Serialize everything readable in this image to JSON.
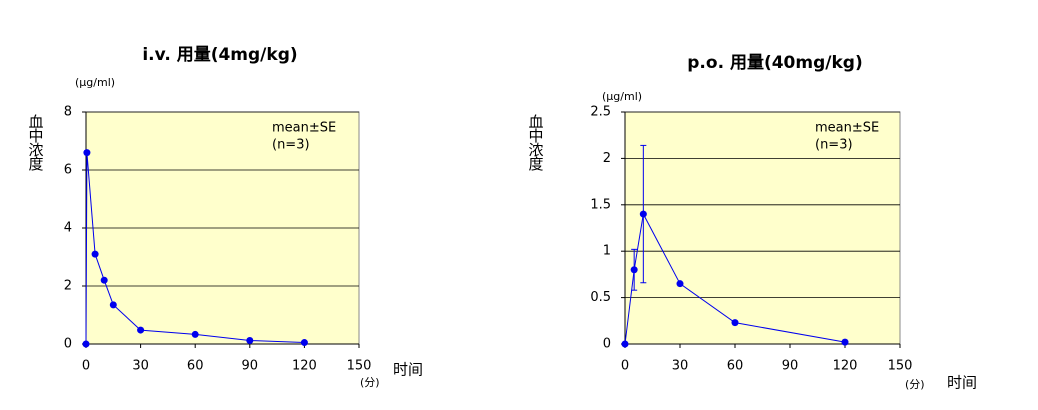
{
  "chart_data": [
    {
      "type": "line",
      "title": "i.v. 用量(4mg/kg)",
      "y_unit": "(μg/ml)",
      "y_label": "血中浓度",
      "x_label": "时间",
      "x_unit": "(分)",
      "annotations": [
        "mean±SE",
        "(n=3)"
      ],
      "x": [
        0,
        0.5,
        5,
        10,
        15,
        30,
        60,
        90,
        120
      ],
      "series": [
        {
          "color": "#0000ee",
          "values": [
            0,
            6.6,
            3.1,
            2.2,
            1.35,
            0.48,
            0.33,
            0.12,
            0.05
          ]
        }
      ],
      "xlim": [
        0,
        150
      ],
      "xticks": [
        0,
        30,
        60,
        90,
        120,
        150
      ],
      "ylim": [
        0,
        8
      ],
      "yticks": [
        0,
        2,
        4,
        6,
        8
      ],
      "grid": true,
      "background": "#ffffcc"
    },
    {
      "type": "line",
      "title": "p.o. 用量(40mg/kg)",
      "y_unit": "(μg/ml)",
      "y_label": "血中浓度",
      "x_label": "时间",
      "x_unit": "(分)",
      "annotations": [
        "mean±SE",
        "(n=3)"
      ],
      "x": [
        0,
        5,
        10,
        30,
        60,
        120
      ],
      "series": [
        {
          "color": "#0000ee",
          "values": [
            0,
            0.8,
            1.4,
            0.65,
            0.23,
            0.02
          ],
          "errors": [
            null,
            0.22,
            0.74,
            null,
            null,
            null
          ]
        }
      ],
      "xlim": [
        0,
        150
      ],
      "xticks": [
        0,
        30,
        60,
        90,
        120,
        150
      ],
      "ylim": [
        0,
        2.5
      ],
      "yticks": [
        0,
        0.5,
        1,
        1.5,
        2,
        2.5
      ],
      "grid": true,
      "background": "#ffffcc"
    }
  ]
}
